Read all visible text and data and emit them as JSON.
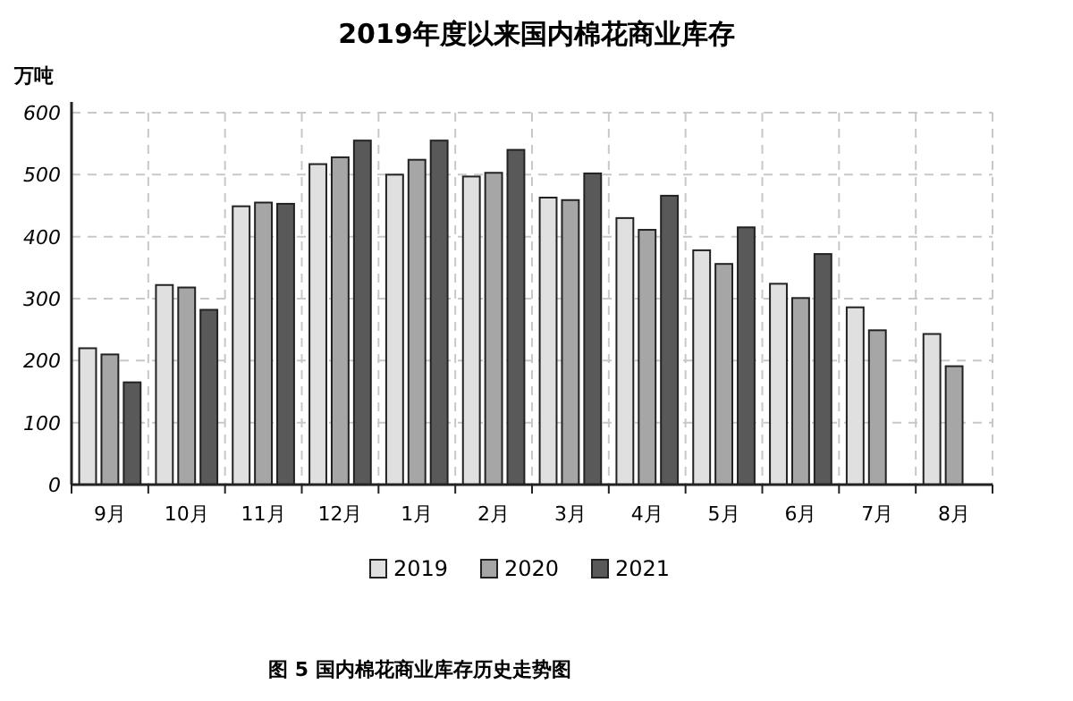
{
  "chart_data": {
    "type": "bar",
    "title": "2019年度以来国内棉花商业库存",
    "ylabel": "万吨",
    "categories": [
      "9月",
      "10月",
      "11月",
      "12月",
      "1月",
      "2月",
      "3月",
      "4月",
      "5月",
      "6月",
      "7月",
      "8月"
    ],
    "series": [
      {
        "name": "2019",
        "color": "#e0e0e0",
        "values": [
          220,
          322,
          449,
          517,
          500,
          497,
          463,
          430,
          378,
          324,
          286,
          243
        ]
      },
      {
        "name": "2020",
        "color": "#a6a6a6",
        "values": [
          210,
          318,
          455,
          528,
          524,
          503,
          459,
          411,
          356,
          301,
          249,
          191
        ]
      },
      {
        "name": "2021",
        "color": "#595959",
        "values": [
          165,
          282,
          453,
          555,
          555,
          540,
          502,
          466,
          415,
          372,
          null,
          null
        ]
      }
    ],
    "ylim": [
      0,
      600
    ],
    "yticks": [
      0,
      100,
      200,
      300,
      400,
      500,
      600
    ],
    "grid": true,
    "legend": "bottom",
    "annotations": [
      "图 5  国内棉花商业库存历史走势图"
    ]
  }
}
